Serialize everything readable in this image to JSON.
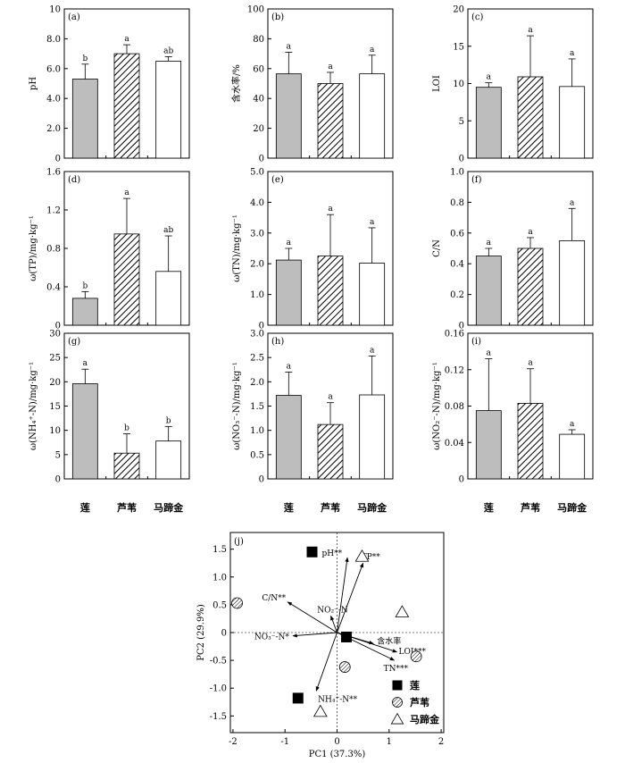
{
  "categories": [
    "莲",
    "芦苇",
    "马蹄金"
  ],
  "legend": [
    {
      "label": "莲",
      "marker": "filled-square"
    },
    {
      "label": "芦苇",
      "marker": "hatched-circle"
    },
    {
      "label": "马蹄金",
      "marker": "open-triangle"
    }
  ],
  "colors": {
    "lotus_bar": "#bdbdbd",
    "reed_bar": "hatched",
    "dichondra_bar": "#ffffff"
  },
  "chart_data": [
    {
      "type": "bar",
      "panel": "(a)",
      "ylabel": "pH",
      "ylim": [
        0,
        10
      ],
      "ticks": [
        "0",
        "2.0",
        "4.0",
        "6.0",
        "8.0",
        "10"
      ],
      "categories": [
        "莲",
        "芦苇",
        "马蹄金"
      ],
      "values": [
        5.3,
        7.0,
        6.5
      ],
      "errors": [
        1.0,
        0.6,
        0.3
      ],
      "letters": [
        "b",
        "a",
        "ab"
      ]
    },
    {
      "type": "bar",
      "panel": "(b)",
      "ylabel": "含水率/%",
      "ylim": [
        0,
        100
      ],
      "ticks": [
        "0",
        "20",
        "40",
        "60",
        "80",
        "100"
      ],
      "categories": [
        "莲",
        "芦苇",
        "马蹄金"
      ],
      "values": [
        56.5,
        50.0,
        56.5
      ],
      "errors": [
        14.5,
        7.5,
        12.5
      ],
      "letters": [
        "a",
        "a",
        "a"
      ]
    },
    {
      "type": "bar",
      "panel": "(c)",
      "ylabel": "LOI",
      "ylim": [
        0,
        20
      ],
      "ticks": [
        "0",
        "5",
        "10",
        "15",
        "20"
      ],
      "categories": [
        "莲",
        "芦苇",
        "马蹄金"
      ],
      "values": [
        9.5,
        10.9,
        9.6
      ],
      "errors": [
        0.6,
        5.5,
        3.7
      ],
      "letters": [
        "a",
        "a",
        "a"
      ]
    },
    {
      "type": "bar",
      "panel": "(d)",
      "ylabel": "ω(TP)/mg·kg⁻¹",
      "ylim": [
        0,
        1.6
      ],
      "ticks": [
        "0",
        "0.4",
        "0.8",
        "1.2",
        "1.6"
      ],
      "categories": [
        "莲",
        "芦苇",
        "马蹄金"
      ],
      "values": [
        0.28,
        0.95,
        0.56
      ],
      "errors": [
        0.07,
        0.37,
        0.37
      ],
      "letters": [
        "b",
        "a",
        "ab"
      ]
    },
    {
      "type": "bar",
      "panel": "(e)",
      "ylabel": "ω(TN)/mg·kg⁻¹",
      "ylim": [
        0,
        5.0
      ],
      "ticks": [
        "0",
        "1.0",
        "2.0",
        "3.0",
        "4.0",
        "5.0"
      ],
      "categories": [
        "莲",
        "芦苇",
        "马蹄金"
      ],
      "values": [
        2.12,
        2.25,
        2.02
      ],
      "errors": [
        0.38,
        1.35,
        1.15
      ],
      "letters": [
        "a",
        "a",
        "a"
      ]
    },
    {
      "type": "bar",
      "panel": "(f)",
      "ylabel": "C/N",
      "ylim": [
        0,
        1.0
      ],
      "ticks": [
        "0",
        "0.2",
        "0.4",
        "0.6",
        "0.8",
        "1.0"
      ],
      "categories": [
        "莲",
        "芦苇",
        "马蹄金"
      ],
      "values": [
        0.45,
        0.5,
        0.55
      ],
      "errors": [
        0.05,
        0.07,
        0.21
      ],
      "letters": [
        "a",
        "a",
        "a"
      ]
    },
    {
      "type": "bar",
      "panel": "(g)",
      "ylabel": "ω(NH₄⁺-N)/mg·kg⁻¹",
      "ylim": [
        0,
        30
      ],
      "ticks": [
        "0",
        "5",
        "10",
        "15",
        "20",
        "25",
        "30"
      ],
      "categories": [
        "莲",
        "芦苇",
        "马蹄金"
      ],
      "values": [
        19.6,
        5.3,
        7.8
      ],
      "errors": [
        3.0,
        4.0,
        3.0
      ],
      "letters": [
        "a",
        "b",
        "b"
      ]
    },
    {
      "type": "bar",
      "panel": "(h)",
      "ylabel": "ω(NO₃⁻-N)/mg·kg⁻¹",
      "ylim": [
        0,
        3.0
      ],
      "ticks": [
        "0",
        "0.5",
        "1.0",
        "1.5",
        "2.0",
        "2.5",
        "3.0"
      ],
      "categories": [
        "莲",
        "芦苇",
        "马蹄金"
      ],
      "values": [
        1.72,
        1.12,
        1.73
      ],
      "errors": [
        0.48,
        0.45,
        0.8
      ],
      "letters": [
        "a",
        "a",
        "a"
      ]
    },
    {
      "type": "bar",
      "panel": "(i)",
      "ylabel": "ω(NO₂⁻-N)/mg·kg⁻¹",
      "ylim": [
        0,
        0.16
      ],
      "ticks": [
        "0",
        "0.04",
        "0.08",
        "0.12",
        "0.16"
      ],
      "categories": [
        "莲",
        "芦苇",
        "马蹄金"
      ],
      "values": [
        0.075,
        0.083,
        0.049
      ],
      "errors": [
        0.057,
        0.038,
        0.005
      ],
      "letters": [
        "a",
        "a",
        "a"
      ]
    },
    {
      "type": "scatter",
      "panel": "(j)",
      "xlabel": "PC1 (37.3%)",
      "ylabel": "PC2 (29.9%)",
      "xlim": [
        -2.05,
        2.05
      ],
      "ylim": [
        -1.8,
        1.8
      ],
      "xticks": [
        "-2",
        "-1",
        "0",
        "1",
        "2"
      ],
      "yticks": [
        "-1.5",
        "-1.0",
        "-0.5",
        "0",
        "0.5",
        "1.0",
        "1.5"
      ],
      "series": [
        {
          "name": "莲",
          "marker": "filled-square",
          "points": [
            [
              -0.48,
              1.45
            ],
            [
              -0.75,
              -1.18
            ],
            [
              0.18,
              -0.08
            ]
          ]
        },
        {
          "name": "芦苇",
          "marker": "hatched-circle",
          "points": [
            [
              -1.92,
              0.53
            ],
            [
              0.15,
              -0.62
            ],
            [
              1.52,
              -0.43
            ]
          ]
        },
        {
          "name": "马蹄金",
          "marker": "open-triangle",
          "points": [
            [
              0.48,
              1.37
            ],
            [
              1.25,
              0.37
            ],
            [
              -0.32,
              -1.42
            ]
          ]
        }
      ],
      "vectors": [
        {
          "label": "pH**",
          "x": 0.2,
          "y": 1.35
        },
        {
          "label": "TP**",
          "x": 0.5,
          "y": 1.25
        },
        {
          "label": "C/N**",
          "x": -0.95,
          "y": 0.55
        },
        {
          "label": "NO₂⁻-N",
          "x": -0.12,
          "y": 0.3
        },
        {
          "label": "NO₃⁻-N*",
          "x": -0.85,
          "y": -0.06
        },
        {
          "label": "含水率",
          "x": 0.7,
          "y": -0.2
        },
        {
          "label": "LOI***",
          "x": 1.15,
          "y": -0.35
        },
        {
          "label": "TN***",
          "x": 1.1,
          "y": -0.5
        },
        {
          "label": "NH₄⁺-N**",
          "x": -0.4,
          "y": -1.05
        }
      ]
    }
  ]
}
